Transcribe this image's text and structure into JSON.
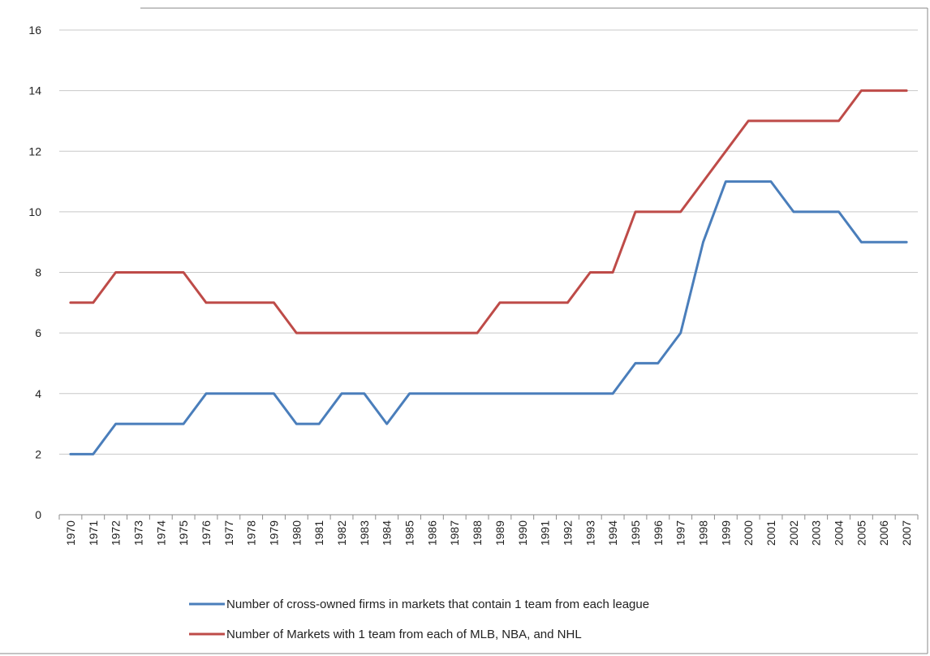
{
  "chart_data": {
    "type": "line",
    "title": "",
    "xlabel": "",
    "ylabel": "",
    "x": [
      "1970",
      "1971",
      "1972",
      "1973",
      "1974",
      "1975",
      "1976",
      "1977",
      "1978",
      "1979",
      "1980",
      "1981",
      "1982",
      "1983",
      "1984",
      "1985",
      "1986",
      "1987",
      "1988",
      "1989",
      "1990",
      "1991",
      "1992",
      "1993",
      "1994",
      "1995",
      "1996",
      "1997",
      "1998",
      "1999",
      "2000",
      "2001",
      "2002",
      "2003",
      "2004",
      "2005",
      "2006",
      "2007"
    ],
    "ylim": [
      0,
      16
    ],
    "yticks": [
      0,
      2,
      4,
      6,
      8,
      10,
      12,
      14,
      16
    ],
    "grid": true,
    "legend_position": "bottom",
    "series": [
      {
        "name": "Number of cross-owned firms in markets that contain 1 team from each league",
        "color": "#4a7ebb",
        "values": [
          2,
          2,
          3,
          3,
          3,
          3,
          4,
          4,
          4,
          4,
          3,
          3,
          4,
          4,
          3,
          4,
          4,
          4,
          4,
          4,
          4,
          4,
          4,
          4,
          4,
          5,
          5,
          6,
          9,
          11,
          11,
          11,
          10,
          10,
          10,
          9,
          9,
          9
        ]
      },
      {
        "name": "Number of Markets with 1 team from each of MLB, NBA, and NHL",
        "color": "#be4b48",
        "values": [
          7,
          7,
          8,
          8,
          8,
          8,
          7,
          7,
          7,
          7,
          6,
          6,
          6,
          6,
          6,
          6,
          6,
          6,
          6,
          7,
          7,
          7,
          7,
          8,
          8,
          10,
          10,
          10,
          11,
          12,
          13,
          13,
          13,
          13,
          13,
          14,
          14,
          14
        ]
      }
    ]
  }
}
